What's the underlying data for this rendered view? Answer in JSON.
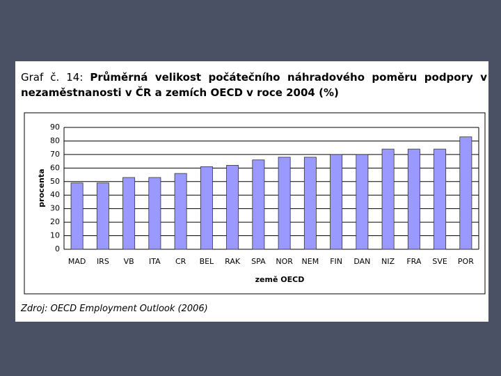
{
  "chart_data": {
    "type": "bar",
    "label": "Graf č. 14:",
    "title": "Průměrná velikost počátečního náhradového poměru podpory v nezaměstnanosti v ČR a zemích OECD v roce 2004 (%)",
    "x_label": "země OECD",
    "y_label": "procenta",
    "source": "Zdroj: OECD Employment Outlook (2006)",
    "categories": [
      "MAD",
      "IRS",
      "VB",
      "ITA",
      "CR",
      "BEL",
      "RAK",
      "SPA",
      "NOR",
      "NEM",
      "FIN",
      "DAN",
      "NIZ",
      "FRA",
      "SVE",
      "POR"
    ],
    "values": [
      49,
      49,
      53,
      53,
      56,
      61,
      62,
      66,
      68,
      68,
      70,
      70,
      74,
      74,
      74,
      83
    ],
    "color": "#9999ff",
    "ylim": [
      0,
      90
    ],
    "yticks": [
      0,
      10,
      20,
      30,
      40,
      50,
      60,
      70,
      80,
      90
    ],
    "grid": true
  }
}
